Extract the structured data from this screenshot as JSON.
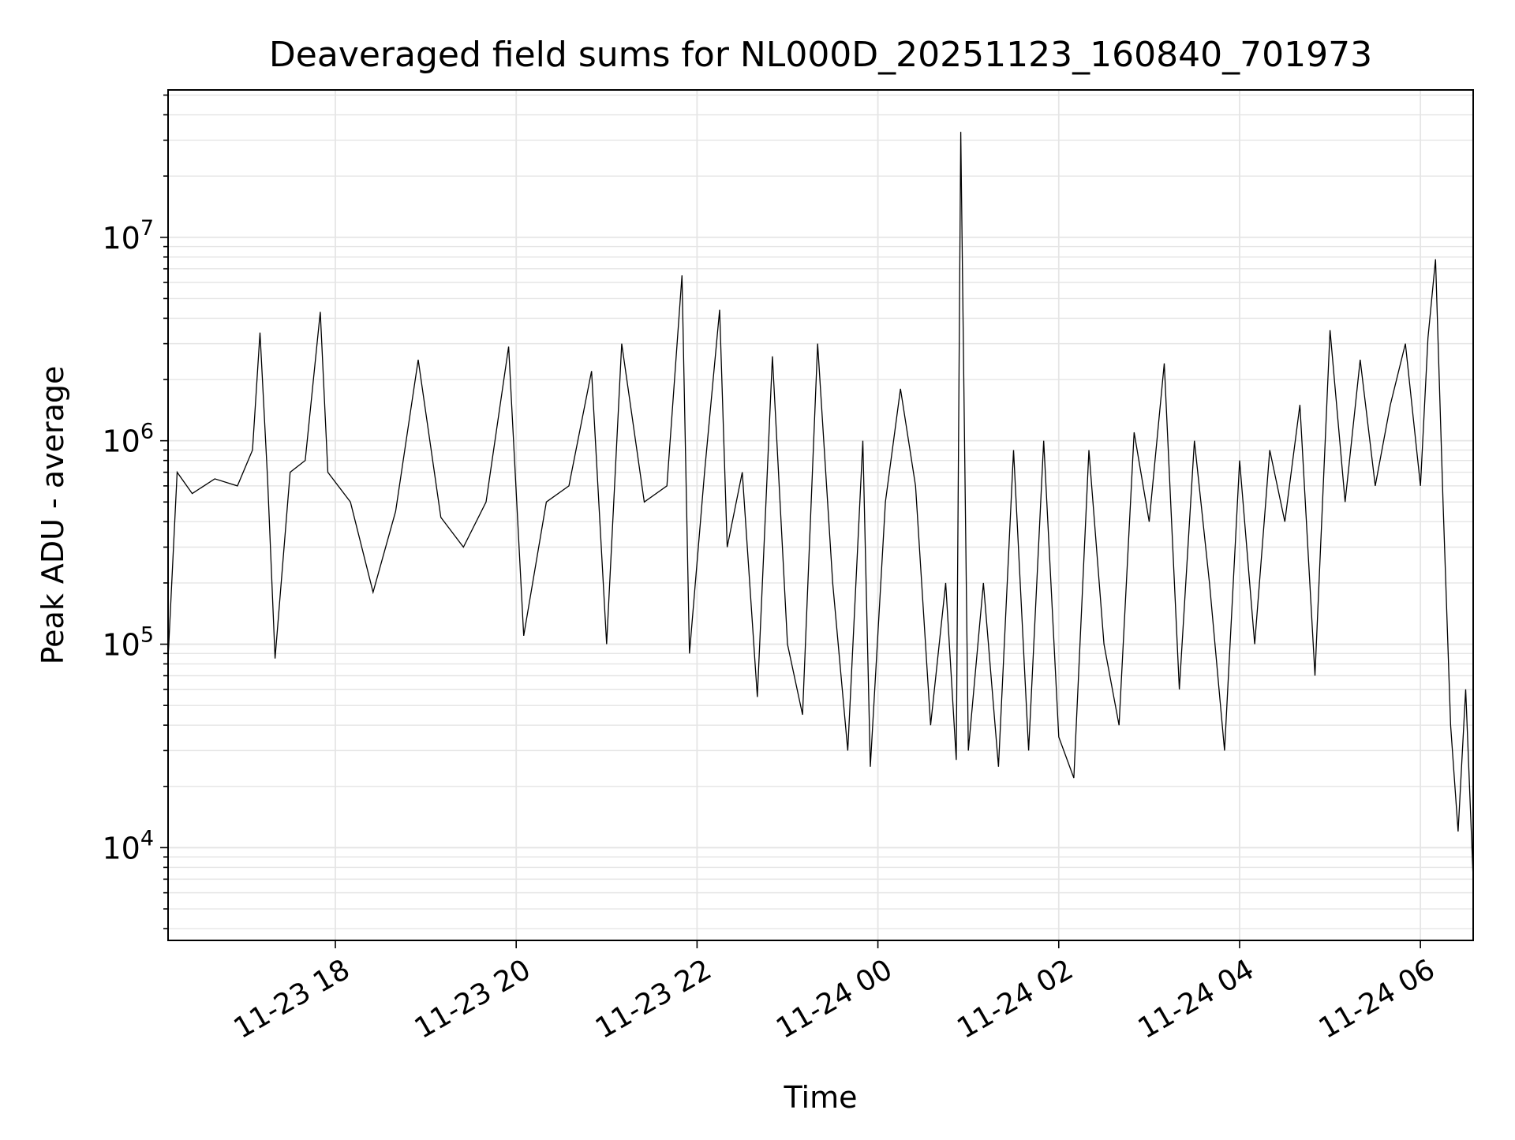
{
  "chart_data": {
    "type": "line",
    "title": "Deaveraged field sums for NL000D_20251123_160840_701973",
    "xlabel": "Time",
    "ylabel": "Peak ADU - average",
    "x_type": "datetime",
    "xlim": [
      "2025-11-23 16:09",
      "2025-11-24 06:35"
    ],
    "x_ticks": [
      "2025-11-23 18:00",
      "2025-11-23 20:00",
      "2025-11-23 22:00",
      "2025-11-24 00:00",
      "2025-11-24 02:00",
      "2025-11-24 04:00",
      "2025-11-24 06:00"
    ],
    "x_tick_labels": [
      "11-23 18",
      "11-23 20",
      "11-23 22",
      "11-24 00",
      "11-24 02",
      "11-24 04",
      "11-24 06"
    ],
    "y_scale": "log",
    "ylim": [
      3500,
      53000000
    ],
    "y_ticks": [
      10000,
      100000,
      1000000,
      10000000
    ],
    "y_tick_labels": [
      {
        "base": "10",
        "exp": "4"
      },
      {
        "base": "10",
        "exp": "5"
      },
      {
        "base": "10",
        "exp": "6"
      },
      {
        "base": "10",
        "exp": "7"
      }
    ],
    "grid": true,
    "legend": "none",
    "line_color": "#000000",
    "grid_color": "#e5e5e5",
    "series": [
      {
        "points": [
          [
            "2025-11-23 16:09",
            85000
          ],
          [
            "2025-11-23 16:15",
            700000
          ],
          [
            "2025-11-23 16:25",
            550000
          ],
          [
            "2025-11-23 16:40",
            650000
          ],
          [
            "2025-11-23 16:55",
            600000
          ],
          [
            "2025-11-23 17:05",
            900000
          ],
          [
            "2025-11-23 17:10",
            3400000
          ],
          [
            "2025-11-23 17:15",
            650000
          ],
          [
            "2025-11-23 17:20",
            85000
          ],
          [
            "2025-11-23 17:30",
            700000
          ],
          [
            "2025-11-23 17:40",
            800000
          ],
          [
            "2025-11-23 17:50",
            4300000
          ],
          [
            "2025-11-23 17:55",
            700000
          ],
          [
            "2025-11-23 18:10",
            500000
          ],
          [
            "2025-11-23 18:25",
            180000
          ],
          [
            "2025-11-23 18:40",
            450000
          ],
          [
            "2025-11-23 18:55",
            2500000
          ],
          [
            "2025-11-23 19:10",
            420000
          ],
          [
            "2025-11-23 19:25",
            300000
          ],
          [
            "2025-11-23 19:40",
            500000
          ],
          [
            "2025-11-23 19:55",
            2900000
          ],
          [
            "2025-11-23 20:05",
            110000
          ],
          [
            "2025-11-23 20:20",
            500000
          ],
          [
            "2025-11-23 20:35",
            600000
          ],
          [
            "2025-11-23 20:50",
            2200000
          ],
          [
            "2025-11-23 21:00",
            100000
          ],
          [
            "2025-11-23 21:10",
            3000000
          ],
          [
            "2025-11-23 21:25",
            500000
          ],
          [
            "2025-11-23 21:40",
            600000
          ],
          [
            "2025-11-23 21:50",
            6500000
          ],
          [
            "2025-11-23 21:55",
            90000
          ],
          [
            "2025-11-23 22:05",
            700000
          ],
          [
            "2025-11-23 22:15",
            4400000
          ],
          [
            "2025-11-23 22:20",
            300000
          ],
          [
            "2025-11-23 22:30",
            700000
          ],
          [
            "2025-11-23 22:40",
            55000
          ],
          [
            "2025-11-23 22:50",
            2600000
          ],
          [
            "2025-11-23 23:00",
            100000
          ],
          [
            "2025-11-23 23:10",
            45000
          ],
          [
            "2025-11-23 23:20",
            3000000
          ],
          [
            "2025-11-23 23:30",
            200000
          ],
          [
            "2025-11-23 23:40",
            30000
          ],
          [
            "2025-11-23 23:50",
            1000000
          ],
          [
            "2025-11-23 23:55",
            25000
          ],
          [
            "2025-11-24 00:05",
            500000
          ],
          [
            "2025-11-24 00:15",
            1800000
          ],
          [
            "2025-11-24 00:25",
            600000
          ],
          [
            "2025-11-24 00:35",
            40000
          ],
          [
            "2025-11-24 00:45",
            200000
          ],
          [
            "2025-11-24 00:52",
            27000
          ],
          [
            "2025-11-24 00:55",
            33000000
          ],
          [
            "2025-11-24 01:00",
            30000
          ],
          [
            "2025-11-24 01:10",
            200000
          ],
          [
            "2025-11-24 01:20",
            25000
          ],
          [
            "2025-11-24 01:30",
            900000
          ],
          [
            "2025-11-24 01:40",
            30000
          ],
          [
            "2025-11-24 01:50",
            1000000
          ],
          [
            "2025-11-24 02:00",
            35000
          ],
          [
            "2025-11-24 02:10",
            22000
          ],
          [
            "2025-11-24 02:20",
            900000
          ],
          [
            "2025-11-24 02:30",
            100000
          ],
          [
            "2025-11-24 02:40",
            40000
          ],
          [
            "2025-11-24 02:50",
            1100000
          ],
          [
            "2025-11-24 03:00",
            400000
          ],
          [
            "2025-11-24 03:10",
            2400000
          ],
          [
            "2025-11-24 03:20",
            60000
          ],
          [
            "2025-11-24 03:30",
            1000000
          ],
          [
            "2025-11-24 03:40",
            200000
          ],
          [
            "2025-11-24 03:50",
            30000
          ],
          [
            "2025-11-24 04:00",
            800000
          ],
          [
            "2025-11-24 04:10",
            100000
          ],
          [
            "2025-11-24 04:20",
            900000
          ],
          [
            "2025-11-24 04:30",
            400000
          ],
          [
            "2025-11-24 04:40",
            1500000
          ],
          [
            "2025-11-24 04:50",
            70000
          ],
          [
            "2025-11-24 05:00",
            3500000
          ],
          [
            "2025-11-24 05:10",
            500000
          ],
          [
            "2025-11-24 05:20",
            2500000
          ],
          [
            "2025-11-24 05:30",
            600000
          ],
          [
            "2025-11-24 05:40",
            1500000
          ],
          [
            "2025-11-24 05:50",
            3000000
          ],
          [
            "2025-11-24 06:00",
            600000
          ],
          [
            "2025-11-24 06:05",
            3200000
          ],
          [
            "2025-11-24 06:10",
            7800000
          ],
          [
            "2025-11-24 06:15",
            500000
          ],
          [
            "2025-11-24 06:20",
            40000
          ],
          [
            "2025-11-24 06:25",
            12000
          ],
          [
            "2025-11-24 06:30",
            60000
          ],
          [
            "2025-11-24 06:35",
            7000
          ]
        ]
      }
    ]
  }
}
